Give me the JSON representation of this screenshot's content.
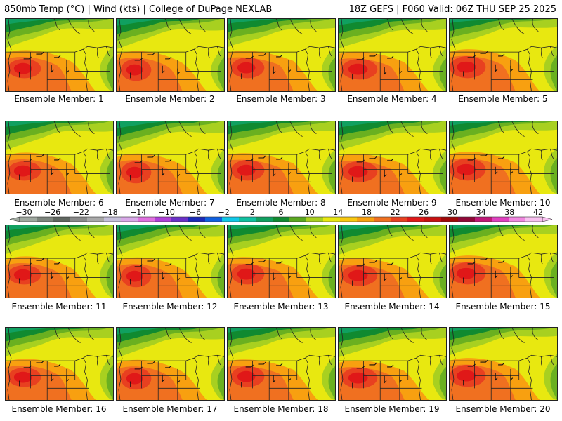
{
  "header": {
    "left": "850mb Temp (°C) | Wind (kts) | College of DuPage NEXLAB",
    "right": "18Z GEFS | F060 Valid: 06Z THU SEP 25 2025"
  },
  "members": [
    {
      "label": "Ensemble Member: 1",
      "number": 1
    },
    {
      "label": "Ensemble Member: 2",
      "number": 2
    },
    {
      "label": "Ensemble Member: 3",
      "number": 3
    },
    {
      "label": "Ensemble Member: 4",
      "number": 4
    },
    {
      "label": "Ensemble Member: 5",
      "number": 5
    },
    {
      "label": "Ensemble Member: 6",
      "number": 6
    },
    {
      "label": "Ensemble Member: 7",
      "number": 7
    },
    {
      "label": "Ensemble Member: 8",
      "number": 8
    },
    {
      "label": "Ensemble Member: 9",
      "number": 9
    },
    {
      "label": "Ensemble Member: 10",
      "number": 10
    },
    {
      "label": "Ensemble Member: 11",
      "number": 11
    },
    {
      "label": "Ensemble Member: 12",
      "number": 12
    },
    {
      "label": "Ensemble Member: 13",
      "number": 13
    },
    {
      "label": "Ensemble Member: 14",
      "number": 14
    },
    {
      "label": "Ensemble Member: 15",
      "number": 15
    },
    {
      "label": "Ensemble Member: 16",
      "number": 16
    },
    {
      "label": "Ensemble Member: 17",
      "number": 17
    },
    {
      "label": "Ensemble Member: 18",
      "number": 18
    },
    {
      "label": "Ensemble Member: 19",
      "number": 19
    },
    {
      "label": "Ensemble Member: 20",
      "number": 20
    }
  ],
  "colorbar": {
    "unit": "°C",
    "tick_labels": [
      "−30",
      "−26",
      "−22",
      "−18",
      "−14",
      "−10",
      "−6",
      "−2",
      "2",
      "6",
      "10",
      "14",
      "18",
      "22",
      "26",
      "30",
      "34",
      "38",
      "42"
    ],
    "colors": [
      "#9fa89f",
      "#7d857d",
      "#5f665f",
      "#8a8a8a",
      "#a9a9a9",
      "#c4bfd9",
      "#d8a8e8",
      "#e070e0",
      "#b040d8",
      "#6a30c8",
      "#1a2ab8",
      "#1060e0",
      "#10c8e8",
      "#10c0a0",
      "#10a060",
      "#108a30",
      "#5aa820",
      "#a8d020",
      "#e8e810",
      "#f8c810",
      "#f8a010",
      "#f07020",
      "#e84020",
      "#e01818",
      "#c81010",
      "#a00808",
      "#900838",
      "#c01878",
      "#e040c0",
      "#f088e0",
      "#f8c0f0"
    ],
    "temp_ramp": {
      "stops": [
        4,
        6,
        8,
        10,
        12,
        14,
        16,
        18,
        20,
        22,
        24
      ],
      "colors": [
        "#10a060",
        "#108a30",
        "#3a9a20",
        "#6ab020",
        "#a8d020",
        "#e8e810",
        "#f8c810",
        "#f8a010",
        "#f07020",
        "#e84020",
        "#e01818"
      ]
    }
  }
}
